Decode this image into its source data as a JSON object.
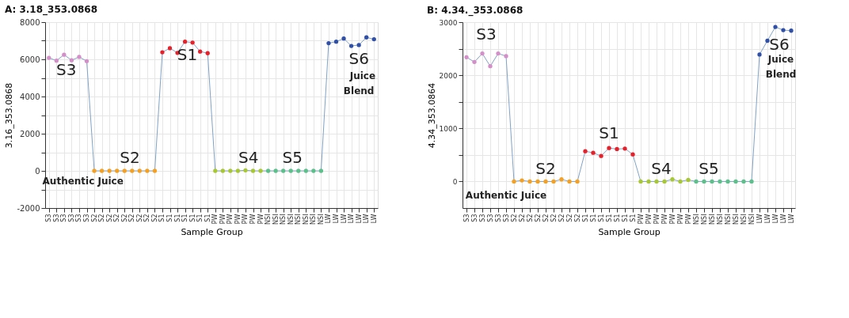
{
  "chart_data": [
    {
      "type": "line",
      "title": "A: 3.18_353.0868",
      "xlabel": "Sample Group",
      "ylabel": "3.16_353.0868",
      "categories": [
        "S3",
        "S3",
        "S3",
        "S3",
        "S3",
        "S3",
        "S2",
        "S2",
        "S2",
        "S2",
        "S2",
        "S2",
        "S2",
        "S2",
        "S2",
        "S1",
        "S1",
        "S1",
        "S1",
        "S1",
        "S1",
        "S1",
        "PW",
        "PW",
        "PW",
        "PW",
        "PW",
        "PW",
        "PW",
        "NSI",
        "NSI",
        "NSI",
        "NSI",
        "NSI",
        "NSI",
        "NSI",
        "NSI",
        "LW",
        "LW",
        "LW",
        "LW",
        "LW",
        "LW",
        "LW"
      ],
      "series": [
        {
          "color": "#7fa3c8",
          "colors": [
            "#d48fc8",
            "#d48fc8",
            "#d48fc8",
            "#d48fc8",
            "#d48fc8",
            "#d48fc8",
            "#f5a020",
            "#f5a020",
            "#f5a020",
            "#f5a020",
            "#f5a020",
            "#f5a020",
            "#f5a020",
            "#f5a020",
            "#f5a020",
            "#e8202a",
            "#e8202a",
            "#e8202a",
            "#e8202a",
            "#e8202a",
            "#e8202a",
            "#e8202a",
            "#a8c832",
            "#a8c832",
            "#a8c832",
            "#a8c832",
            "#a8c832",
            "#a8c832",
            "#a8c832",
            "#5cc08a",
            "#5cc08a",
            "#5cc08a",
            "#5cc08a",
            "#5cc08a",
            "#5cc08a",
            "#5cc08a",
            "#5cc08a",
            "#3050a8",
            "#3050a8",
            "#3050a8",
            "#3050a8",
            "#3050a8",
            "#3050a8",
            "#3050a8"
          ],
          "values": [
            6080,
            5930,
            6250,
            5950,
            6130,
            5900,
            0,
            0,
            0,
            0,
            0,
            0,
            0,
            0,
            0,
            6380,
            6600,
            6350,
            6950,
            6900,
            6420,
            6330,
            0,
            0,
            0,
            0,
            30,
            0,
            0,
            0,
            0,
            0,
            0,
            0,
            0,
            0,
            0,
            6870,
            6950,
            7120,
            6720,
            6770,
            7180,
            7080
          ]
        }
      ],
      "ylim": [
        -2000,
        8000
      ],
      "yticks": [
        -2000,
        {
          "value": -1000,
          "label": null
        },
        0,
        {
          "value": 1000,
          "label": null
        },
        2000,
        {
          "value": 3000,
          "label": null
        },
        4000,
        {
          "value": 5000,
          "label": null
        },
        6000,
        {
          "value": 7000,
          "label": null
        },
        8000
      ],
      "grid": true,
      "annotations": [
        "S3",
        "S1",
        "S6",
        "Juice",
        "Blend",
        "S2",
        "Authentic Juice",
        "S4",
        "S5"
      ]
    },
    {
      "type": "line",
      "title": "B: 4.34._353.0868",
      "xlabel": "Sample Group",
      "ylabel": "4.34_353.0864",
      "categories": [
        "S3",
        "S3",
        "S3",
        "S3",
        "S3",
        "S3",
        "S2",
        "S2",
        "S2",
        "S2",
        "S2",
        "S2",
        "S2",
        "S2",
        "S2",
        "S1",
        "S1",
        "S1",
        "S1",
        "S1",
        "S1",
        "S1",
        "PW",
        "PW",
        "PW",
        "PW",
        "PW",
        "PW",
        "PW",
        "NSI",
        "NSI",
        "NSI",
        "NSI",
        "NSI",
        "NSI",
        "NSI",
        "NSI",
        "LW",
        "LW",
        "LW",
        "LW",
        "LW"
      ],
      "series": [
        {
          "color": "#7fa3c8",
          "colors": [
            "#d48fc8",
            "#d48fc8",
            "#d48fc8",
            "#d48fc8",
            "#d48fc8",
            "#d48fc8",
            "#f5a020",
            "#f5a020",
            "#f5a020",
            "#f5a020",
            "#f5a020",
            "#f5a020",
            "#f5a020",
            "#f5a020",
            "#f5a020",
            "#e8202a",
            "#e8202a",
            "#e8202a",
            "#e8202a",
            "#e8202a",
            "#e8202a",
            "#e8202a",
            "#a8c832",
            "#a8c832",
            "#a8c832",
            "#a8c832",
            "#a8c832",
            "#a8c832",
            "#a8c832",
            "#5cc08a",
            "#5cc08a",
            "#5cc08a",
            "#5cc08a",
            "#5cc08a",
            "#5cc08a",
            "#5cc08a",
            "#5cc08a",
            "#3050a8",
            "#3050a8",
            "#3050a8",
            "#3050a8",
            "#3050a8"
          ],
          "values": [
            2340,
            2250,
            2410,
            2170,
            2410,
            2360,
            0,
            20,
            0,
            0,
            0,
            0,
            40,
            0,
            0,
            570,
            540,
            480,
            630,
            610,
            620,
            510,
            0,
            0,
            0,
            0,
            40,
            0,
            30,
            0,
            0,
            0,
            0,
            0,
            0,
            0,
            0,
            2390,
            2650,
            2910,
            2850,
            2840
          ]
        }
      ],
      "ylim": [
        -500,
        3000
      ],
      "yticks": [
        0,
        {
          "value": 500,
          "label": null
        },
        1000,
        {
          "value": 1500,
          "label": null
        },
        2000,
        {
          "value": 2500,
          "label": null
        },
        3000
      ],
      "grid": true,
      "annotations": [
        "S3",
        "S1",
        "S2",
        "S4",
        "S5",
        "S6",
        "Juice",
        "Blend",
        "Authentic  Juice"
      ]
    }
  ]
}
